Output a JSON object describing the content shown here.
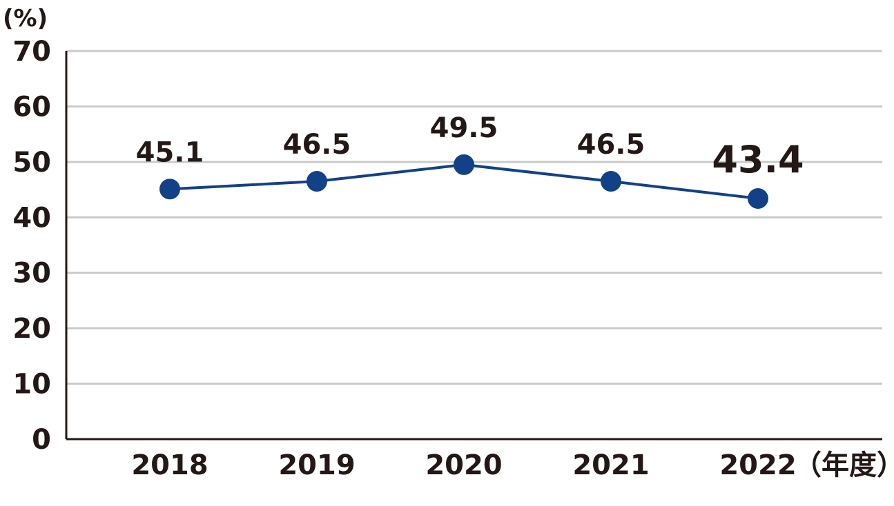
{
  "chart_data": {
    "type": "line",
    "y_unit_label": "(%)",
    "x_unit_label": "（年度）",
    "categories": [
      "2018",
      "2019",
      "2020",
      "2021",
      "2022"
    ],
    "series": [
      {
        "values": [
          45.1,
          46.5,
          49.5,
          46.5,
          43.4
        ]
      }
    ],
    "data_labels": [
      "45.1",
      "46.5",
      "49.5",
      "46.5",
      "43.4"
    ],
    "emphasized_index": 4,
    "ylim": [
      0,
      70
    ],
    "y_ticks": [
      "0",
      "10",
      "20",
      "30",
      "40",
      "50",
      "60",
      "70"
    ],
    "grid": true,
    "colors": {
      "line": "#124188",
      "marker": "#124188",
      "grid": "#c9caca",
      "axis": "#231815",
      "text": "#231815"
    }
  }
}
